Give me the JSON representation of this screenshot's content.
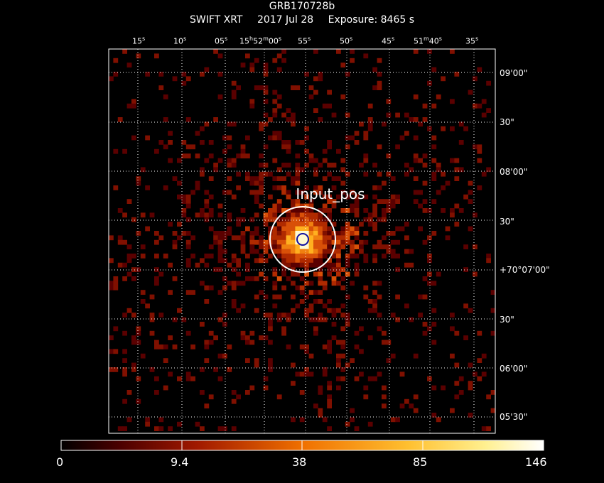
{
  "header": {
    "title": "GRB170728b",
    "instrument": "SWIFT XRT",
    "date": "2017 Jul 28",
    "exposure": "Exposure: 8465 s"
  },
  "ra_ticks": [
    {
      "text": "15",
      "unit": "s"
    },
    {
      "text": "10",
      "unit": "s"
    },
    {
      "text": "05",
      "unit": "s"
    },
    {
      "text": "15h52m00s",
      "display": [
        "15",
        "h",
        "52",
        "m",
        "00",
        "s"
      ]
    },
    {
      "text": "55",
      "unit": "s"
    },
    {
      "text": "50",
      "unit": "s"
    },
    {
      "text": "45",
      "unit": "s"
    },
    {
      "text": "51m40s",
      "display": [
        "51",
        "m",
        "40",
        "s"
      ]
    },
    {
      "text": "35",
      "unit": "s"
    }
  ],
  "dec_ticks": [
    "09'00\"",
    "30\"",
    "08'00\"",
    "30\"",
    "+70°07'00\"",
    "30\"",
    "06'00\"",
    "05'30\""
  ],
  "source_label": "Input_pos",
  "colorbar": {
    "ticks": [
      "0",
      "9.4",
      "38",
      "85",
      "146"
    ],
    "stops": [
      "#000000",
      "#5a0000",
      "#b02000",
      "#f07800",
      "#ffd040",
      "#ffffff"
    ]
  }
}
